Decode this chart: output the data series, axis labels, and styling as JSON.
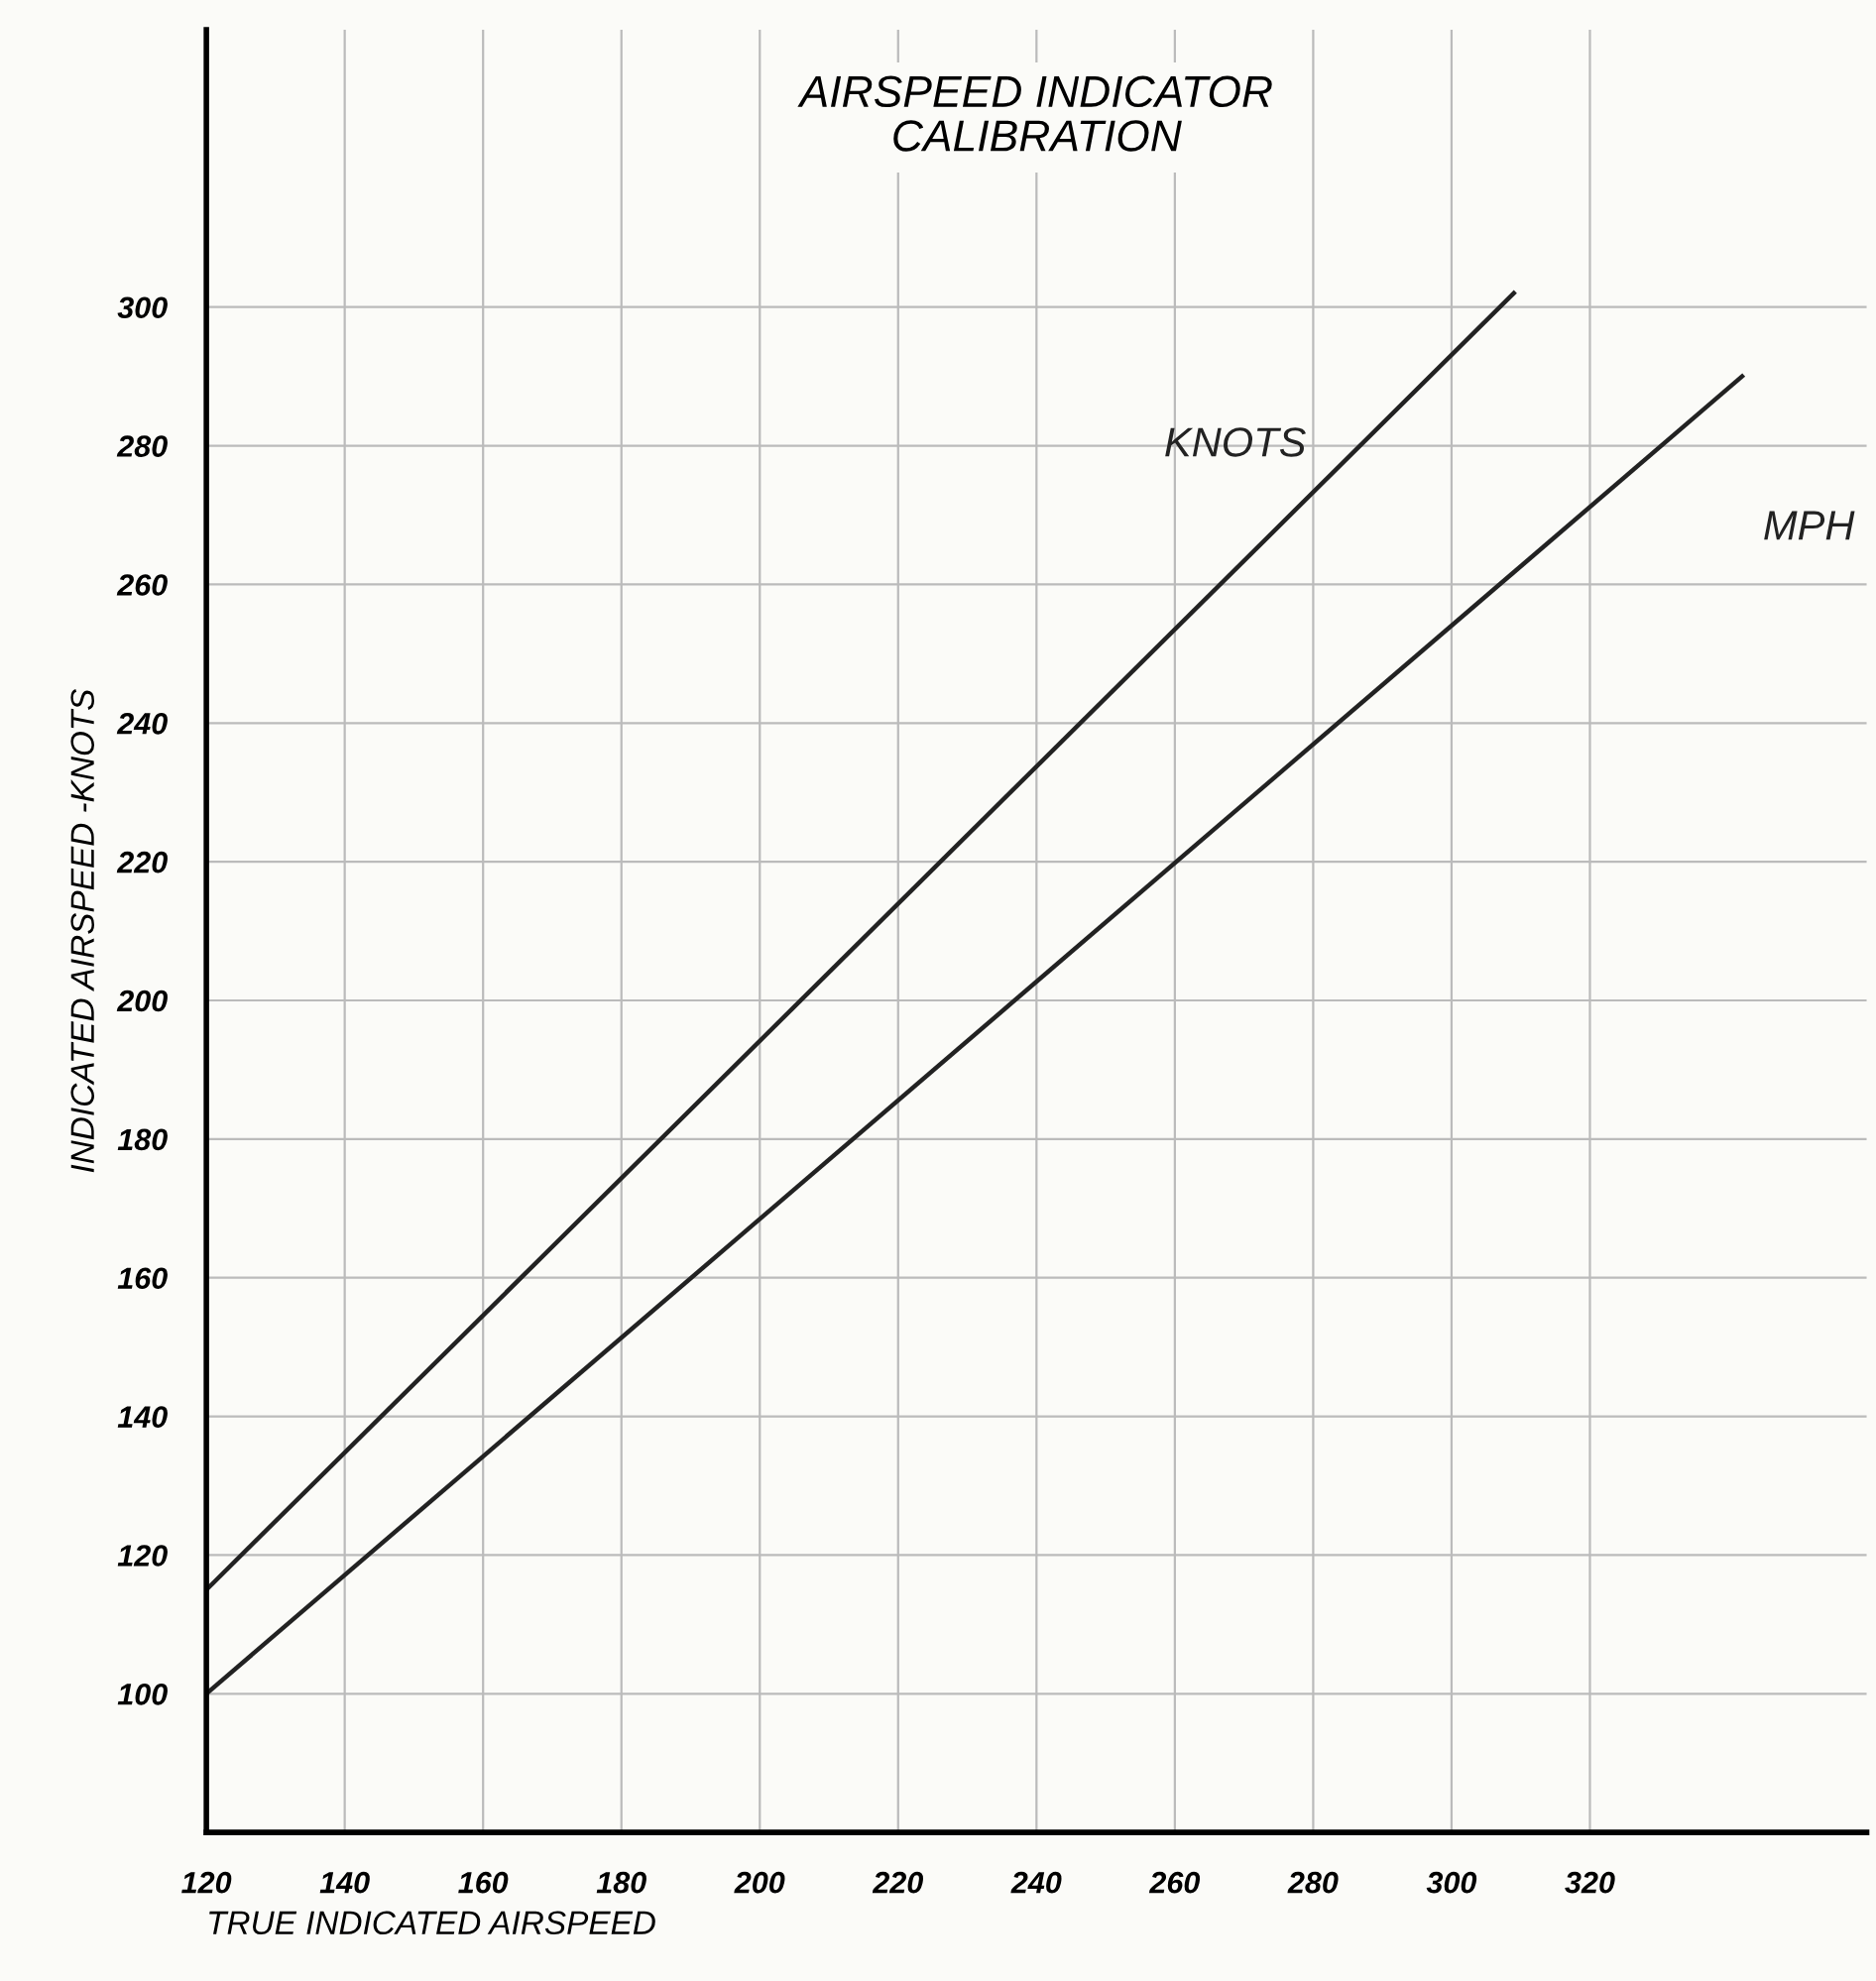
{
  "chart_data": {
    "type": "line",
    "title": "AIRSPEED INDICATOR\nCALIBRATION",
    "xlabel": "TRUE INDICATED AIRSPEED",
    "ylabel": "INDICATED AIRSPEED -KNOTS",
    "series": [
      {
        "name": "KNOTS",
        "color": "#222222",
        "x": [
          120,
          309
        ],
        "values": [
          115,
          302
        ]
      },
      {
        "name": "MPH",
        "color": "#222222",
        "x": [
          120,
          342
        ],
        "values": [
          100,
          290
        ]
      }
    ],
    "xlim": [
      120,
      360
    ],
    "xticks": [
      120,
      140,
      160,
      180,
      200,
      220,
      240,
      260,
      280,
      300,
      320
    ],
    "ylim": [
      80,
      340
    ],
    "yticks": [
      100,
      120,
      140,
      160,
      180,
      200,
      220,
      240,
      260,
      280,
      300
    ],
    "grid": true,
    "legend": false,
    "marker": "none",
    "line_style": "solid"
  }
}
